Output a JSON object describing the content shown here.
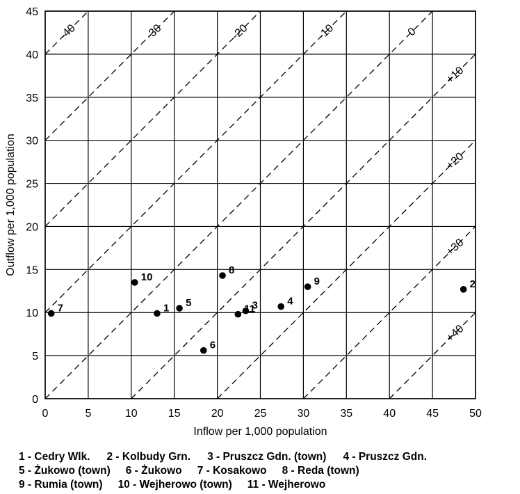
{
  "chart_data": {
    "type": "scatter",
    "title": "",
    "xlabel": "Inflow per 1,000 population",
    "ylabel": "Outflow per 1,000 population",
    "xlim": [
      0,
      50
    ],
    "ylim": [
      0,
      45
    ],
    "xticks": [
      "0",
      "5",
      "10",
      "15",
      "20",
      "25",
      "30",
      "35",
      "40",
      "45",
      "50"
    ],
    "yticks": [
      "0",
      "5",
      "10",
      "15",
      "20",
      "25",
      "30",
      "35",
      "40",
      "45"
    ],
    "grid": true,
    "diagonals": [
      {
        "offset": -40,
        "label": "-40"
      },
      {
        "offset": -30,
        "label": "-30"
      },
      {
        "offset": -20,
        "label": "-20"
      },
      {
        "offset": -10,
        "label": "-10"
      },
      {
        "offset": 0,
        "label": "0"
      },
      {
        "offset": 10,
        "label": "+10"
      },
      {
        "offset": 20,
        "label": "+20"
      },
      {
        "offset": 30,
        "label": "+30"
      },
      {
        "offset": 40,
        "label": "+40"
      }
    ],
    "points": [
      {
        "label": "1",
        "x": 13.0,
        "y": 9.9
      },
      {
        "label": "2",
        "x": 48.6,
        "y": 12.7
      },
      {
        "label": "3",
        "x": 23.3,
        "y": 10.2
      },
      {
        "label": "4",
        "x": 27.4,
        "y": 10.7
      },
      {
        "label": "5",
        "x": 15.6,
        "y": 10.5
      },
      {
        "label": "6",
        "x": 18.4,
        "y": 5.6
      },
      {
        "label": "7",
        "x": 0.7,
        "y": 9.9
      },
      {
        "label": "8",
        "x": 20.6,
        "y": 14.3
      },
      {
        "label": "9",
        "x": 30.5,
        "y": 13.0
      },
      {
        "label": "10",
        "x": 10.4,
        "y": 13.5
      },
      {
        "label": "11",
        "x": 22.4,
        "y": 9.8
      }
    ]
  },
  "legend": {
    "lines": [
      [
        "1 - Cedry Wlk.",
        "2 - Kolbudy Grn.",
        "3 - Pruszcz Gdn. (town)",
        "4 - Pruszcz Gdn."
      ],
      [
        "5 - Żukowo (town)",
        "6 - Żukowo",
        "7 - Kosakowo",
        "8 - Reda (town)"
      ],
      [
        "9 - Rumia (town)",
        "10 -  Wejherowo (town)",
        "11 - Wejherowo"
      ]
    ]
  }
}
